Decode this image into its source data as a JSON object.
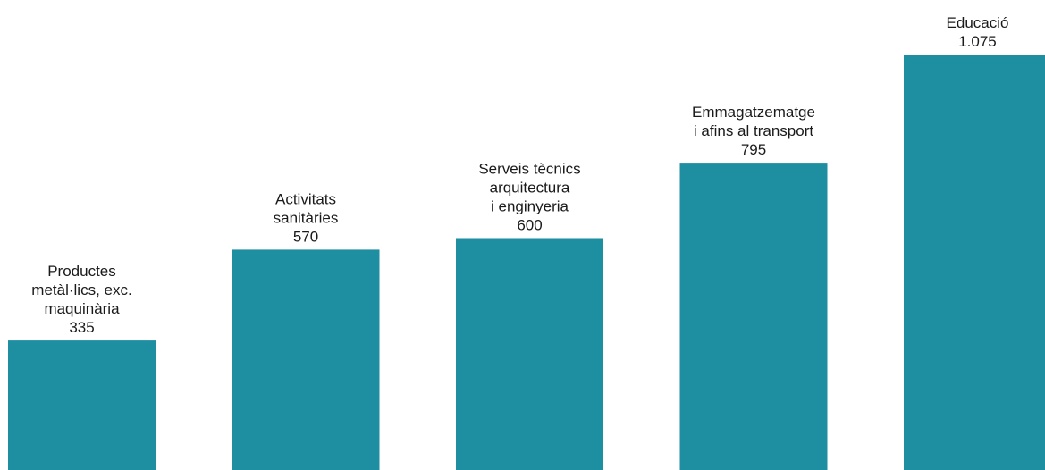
{
  "chart_data": {
    "type": "bar",
    "title": "",
    "xlabel": "",
    "ylabel": "",
    "ylim": [
      0,
      1075
    ],
    "grid": false,
    "legend": "none",
    "bar_color": "#1e8ea1",
    "text_color": "#1a1a1a",
    "categories": [
      {
        "label_lines": [
          "Productes",
          "metàl·lics, exc.",
          "maquinària"
        ],
        "value": 335,
        "value_label": "335"
      },
      {
        "label_lines": [
          "Activitats",
          "sanitàries"
        ],
        "value": 570,
        "value_label": "570"
      },
      {
        "label_lines": [
          "Serveis tècnics",
          "arquitectura",
          "i enginyeria"
        ],
        "value": 600,
        "value_label": "600"
      },
      {
        "label_lines": [
          "Emmagatzematge",
          "i afins al transport"
        ],
        "value": 795,
        "value_label": "795"
      },
      {
        "label_lines": [
          "Educació"
        ],
        "value": 1075,
        "value_label": "1.075"
      }
    ]
  }
}
